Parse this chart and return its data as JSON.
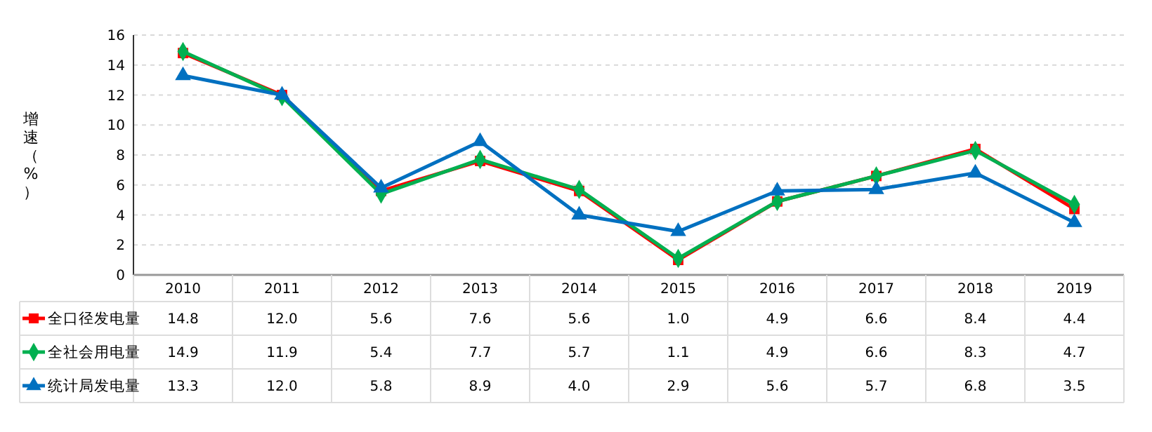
{
  "chart_data": {
    "type": "line",
    "ylabel": "增速（%）",
    "categories": [
      "2010",
      "2011",
      "2012",
      "2013",
      "2014",
      "2015",
      "2016",
      "2017",
      "2018",
      "2019"
    ],
    "series": [
      {
        "name": "全口径发电量",
        "color": "#ff0000",
        "marker": "square",
        "values": [
          14.8,
          12.0,
          5.6,
          7.6,
          5.6,
          1.0,
          4.9,
          6.6,
          8.4,
          4.4
        ],
        "value_labels": [
          "14.8",
          "12.0",
          "5.6",
          "7.6",
          "5.6",
          "1.0",
          "4.9",
          "6.6",
          "8.4",
          "4.4"
        ]
      },
      {
        "name": "全社会用电量",
        "color": "#00b050",
        "marker": "diamond",
        "values": [
          14.9,
          11.9,
          5.4,
          7.7,
          5.7,
          1.1,
          4.9,
          6.6,
          8.3,
          4.7
        ],
        "value_labels": [
          "14.9",
          "11.9",
          "5.4",
          "7.7",
          "5.7",
          "1.1",
          "4.9",
          "6.6",
          "8.3",
          "4.7"
        ]
      },
      {
        "name": "统计局发电量",
        "color": "#0070c0",
        "marker": "triangle",
        "values": [
          13.3,
          12.0,
          5.8,
          8.9,
          4.0,
          2.9,
          5.6,
          5.7,
          6.8,
          3.5
        ],
        "value_labels": [
          "13.3",
          "12.0",
          "5.8",
          "8.9",
          "4.0",
          "2.9",
          "5.6",
          "5.7",
          "6.8",
          "3.5"
        ]
      }
    ],
    "ylim": [
      0,
      16
    ],
    "yticks": [
      0,
      2,
      4,
      6,
      8,
      10,
      12,
      14,
      16
    ],
    "grid": "y",
    "legend": "bottom"
  }
}
